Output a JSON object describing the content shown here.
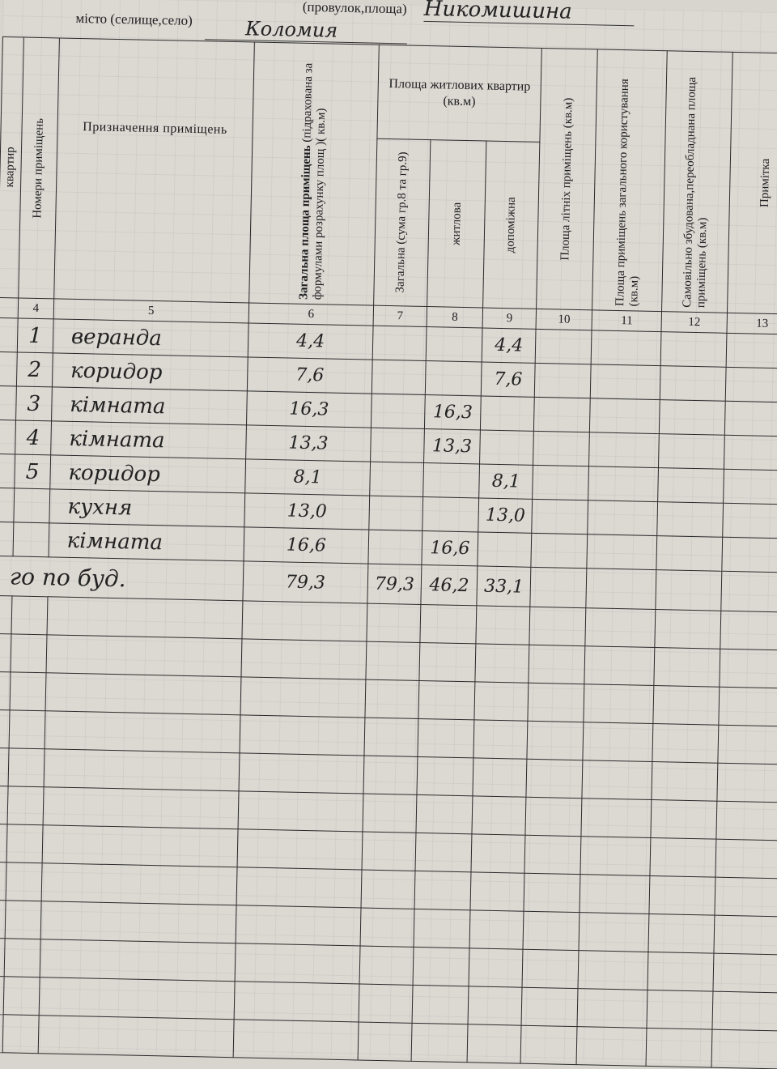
{
  "header": {
    "street_label": "(провулок,площа)",
    "street_value": "Никомишина",
    "city_label": "місто (селище,село)",
    "city_value": "Коломия"
  },
  "columns": {
    "c3": "квартир",
    "c4": "Номери приміщень",
    "c5": "Призначення приміщень",
    "c6_bold": "Загальна площа приміщень",
    "c6_rest": "(підрахована за формулами розрахунку площ )( кв.м)",
    "group_title": "Площа житлових квартир (кв.м)",
    "c7": "Загальна (сума гр.8 та гр.9)",
    "c8": "житлова",
    "c9": "допоміжна",
    "c10": "Площа літніх приміщень (кв.м)",
    "c11": "Площа приміщень загального користування (кв.м)",
    "c12": "Самовільно збудована,переобладнана площа приміщень (кв.м)",
    "c13": "Примітка"
  },
  "column_numbers": [
    "4",
    "5",
    "6",
    "7",
    "8",
    "9",
    "10",
    "11",
    "12",
    "13"
  ],
  "rows": [
    {
      "no": "1",
      "purpose": "веранда",
      "c6": "4,4",
      "c7": "",
      "c8": "",
      "c9": "4,4"
    },
    {
      "no": "2",
      "purpose": "коридор",
      "c6": "7,6",
      "c7": "",
      "c8": "",
      "c9": "7,6"
    },
    {
      "no": "3",
      "purpose": "кімната",
      "c6": "16,3",
      "c7": "",
      "c8": "16,3",
      "c9": ""
    },
    {
      "no": "4",
      "purpose": "кімната",
      "c6": "13,3",
      "c7": "",
      "c8": "13,3",
      "c9": ""
    },
    {
      "no": "5",
      "purpose": "коридор",
      "c6": "8,1",
      "c7": "",
      "c8": "",
      "c9": "8,1"
    },
    {
      "no": "",
      "purpose": "кухня",
      "c6": "13,0",
      "c7": "",
      "c8": "",
      "c9": "13,0"
    },
    {
      "no": "",
      "purpose": "кімната",
      "c6": "16,6",
      "c7": "",
      "c8": "16,6",
      "c9": ""
    }
  ],
  "total": {
    "label": "го по буд.",
    "c6": "79,3",
    "c7": "79,3",
    "c8": "46,2",
    "c9": "33,1"
  }
}
